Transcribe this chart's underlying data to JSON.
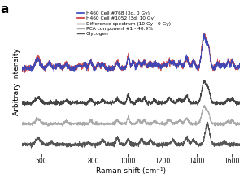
{
  "title_label": "a",
  "xlabel": "Raman shift (cm⁻¹)",
  "ylabel": "Arbitrary Intensity",
  "xmin": 390,
  "xmax": 1650,
  "xticks": [
    500,
    800,
    1000,
    1200,
    1400,
    1600
  ],
  "xticklabels": [
    "500",
    "800",
    "1000",
    "1200",
    "1400",
    "1600"
  ],
  "legend_entries": [
    "H460 Cell #768 (3d, 0 Gy)",
    "H460 Cell #1052 (3d, 10 Gy)",
    "Difference spectrum (10 Gy - 0 Gy)",
    "PCA component #1 - 40.9%",
    "Glycogen"
  ],
  "line_colors": [
    "#3344bb",
    "#cc3333",
    "#444444",
    "#aaaaaa",
    "#555555"
  ],
  "background_color": "#ffffff",
  "offsets": [
    0.62,
    0.62,
    0.36,
    0.2,
    0.04
  ],
  "ylim": [
    -0.02,
    1.08
  ]
}
